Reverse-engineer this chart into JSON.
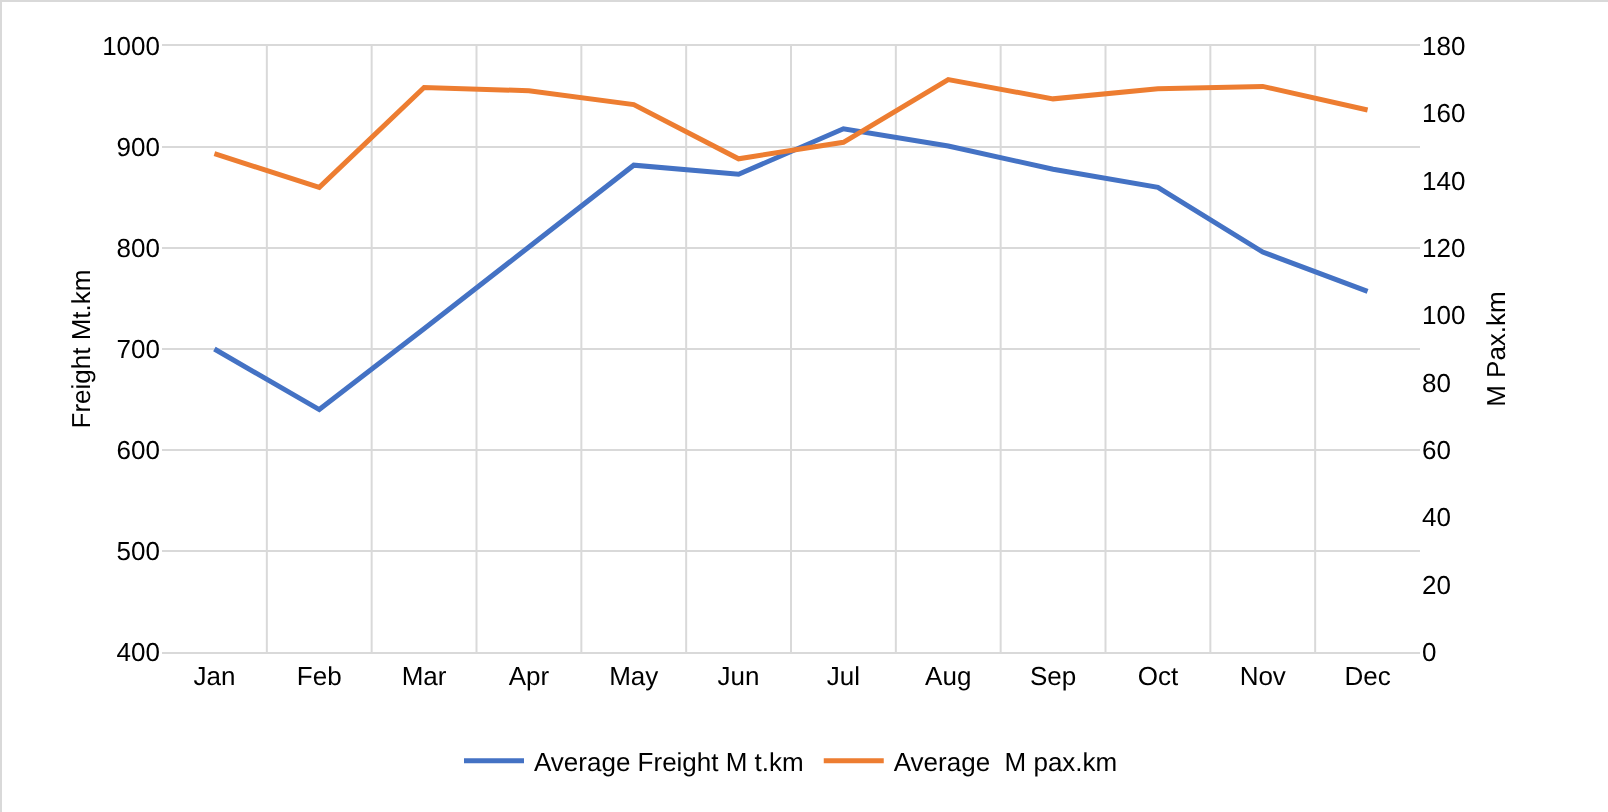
{
  "chart_data": {
    "type": "line",
    "ylabel": "Freight Mt.km",
    "y2label": "M Pax.km",
    "categories": [
      "Jan",
      "Feb",
      "Mar",
      "Apr",
      "May",
      "Jun",
      "Jul",
      "Aug",
      "Sep",
      "Oct",
      "Nov",
      "Dec"
    ],
    "series": [
      {
        "name": "Average Freight M t.km",
        "color": "#4472c4",
        "values": [
          700,
          640,
          720,
          801,
          882,
          873,
          918,
          901,
          878,
          860,
          796,
          757
        ]
      },
      {
        "name": "Average  M pax.km",
        "color": "#ed7d31",
        "axis": "y2",
        "values": [
          148,
          138,
          167.7,
          166.7,
          162.6,
          146.5,
          151.4,
          170,
          164.3,
          167.3,
          168,
          161
        ]
      }
    ],
    "ylim": [
      400,
      1000
    ],
    "yticks": [
      400,
      500,
      600,
      700,
      800,
      900,
      1000
    ],
    "y2lim": [
      0,
      180
    ],
    "y2ticks": [
      0,
      20,
      40,
      60,
      80,
      100,
      120,
      140,
      160,
      180
    ],
    "grid": true,
    "legend": "bottom",
    "marker": "none",
    "line_style": "solid"
  }
}
